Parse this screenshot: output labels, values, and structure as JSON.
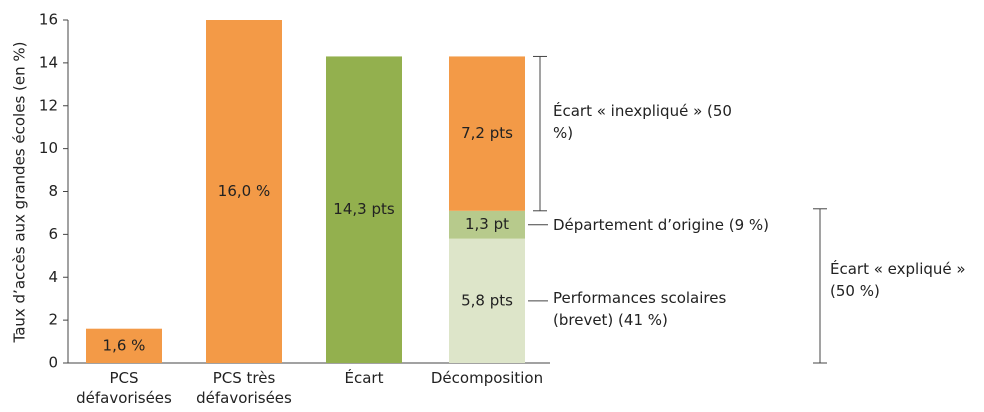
{
  "chart_data": {
    "type": "bar",
    "ylabel": "Taux d’accès aux grandes écoles (en %)",
    "categories": [
      "PCS défavorisées",
      "PCS très défavorisées",
      "Écart",
      "Décomposition"
    ],
    "values": [
      1.6,
      16.0,
      14.3,
      null
    ],
    "value_labels": [
      "1,6 %",
      "16,0 %",
      "14,3 pts",
      null
    ],
    "colors": [
      "#f39a47",
      "#f39a47",
      "#93b04e",
      null
    ],
    "stack_segments": [
      {
        "value": 5.8,
        "value_label": "5,8 pts",
        "color": "#dde5c9",
        "annotation": "Performances scolaires (brevet) (41 %)"
      },
      {
        "value": 1.3,
        "value_label": "1,3 pt",
        "color": "#b7ca8c",
        "annotation": "Département d’origine (9 %)"
      },
      {
        "value": 7.2,
        "value_label": "7,2 pts",
        "color": "#f39a47",
        "annotation": "Écart « inexpliqué » (50 %)"
      }
    ],
    "group_annotation": "Écart « expliqué » (50 %)",
    "ylim": [
      0,
      16
    ],
    "yticks": [
      0,
      2,
      4,
      6,
      8,
      10,
      12,
      14,
      16
    ]
  }
}
